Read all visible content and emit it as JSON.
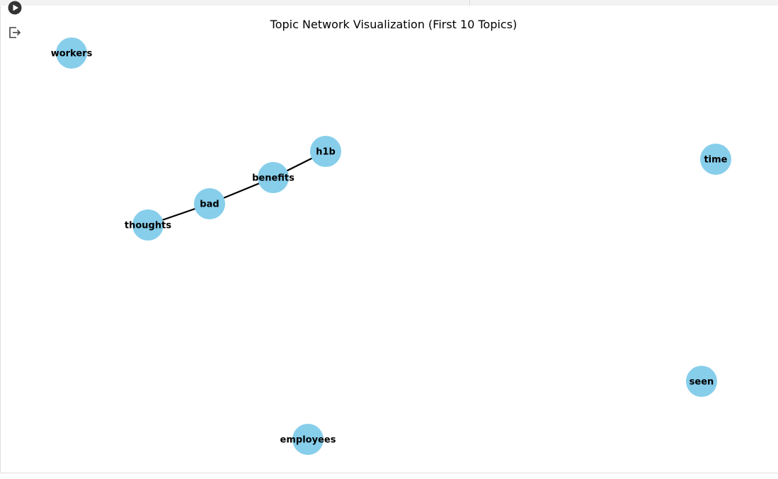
{
  "toolbar": {
    "run_icon": "play-circle-icon",
    "output_icon": "output-exit-icon"
  },
  "colors": {
    "node_fill": "#87ceeb",
    "edge_stroke": "#000000",
    "text": "#000000"
  },
  "chart_data": {
    "type": "network",
    "title": "Topic Network Visualization (First 10 Topics)",
    "nodes": [
      {
        "id": "workers",
        "label": "workers"
      },
      {
        "id": "h1b",
        "label": "h1b"
      },
      {
        "id": "benefits",
        "label": "benefits"
      },
      {
        "id": "bad",
        "label": "bad"
      },
      {
        "id": "thoughts",
        "label": "thoughts"
      },
      {
        "id": "time",
        "label": "time"
      },
      {
        "id": "seen",
        "label": "seen"
      },
      {
        "id": "employees",
        "label": "employees"
      }
    ],
    "edges": [
      {
        "source": "thoughts",
        "target": "bad"
      },
      {
        "source": "bad",
        "target": "benefits"
      },
      {
        "source": "benefits",
        "target": "h1b"
      }
    ],
    "axes_visible": false
  }
}
